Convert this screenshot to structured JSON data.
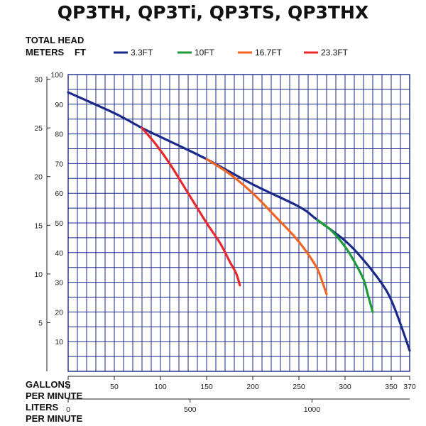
{
  "title": "QP3TH, QP3Ti, QP3TS, QP3THX",
  "axis_labels": {
    "total_head": "TOTAL HEAD",
    "meters": "METERS",
    "ft": "FT",
    "gallons_line1": "GALLONS",
    "gallons_line2": "PER MINUTE",
    "liters_line1": "LITERS",
    "liters_line2": "PER MINUTE"
  },
  "colors": {
    "grid": "#1b2a8a",
    "series_3_3": "#1b2a8a",
    "series_10": "#1e9a3a",
    "series_16_7": "#f26522",
    "series_23_3": "#e8282a"
  },
  "chart_data": {
    "type": "line",
    "title": "QP3TH, QP3Ti, QP3TS, QP3THX",
    "xlabel": "GALLONS PER MINUTE",
    "ylabel": "TOTAL HEAD FT",
    "xlim": [
      0,
      370
    ],
    "ylim": [
      0,
      100
    ],
    "x_ticks": [
      0,
      50,
      100,
      150,
      200,
      250,
      300,
      350,
      370
    ],
    "y_ticks": [
      10,
      20,
      30,
      40,
      50,
      60,
      70,
      80,
      90,
      100
    ],
    "meters_ticks": [
      5,
      10,
      15,
      20,
      25,
      30
    ],
    "liters_ticks": [
      0,
      500,
      1000
    ],
    "grid": true,
    "legend_position": "top",
    "series": [
      {
        "name": "3.3FT",
        "x": [
          0,
          50,
          80,
          100,
          150,
          200,
          250,
          270,
          300,
          320,
          340,
          350,
          360,
          370
        ],
        "y": [
          94,
          87,
          82,
          79,
          71.5,
          63,
          55.5,
          51,
          44,
          37.5,
          29.5,
          24,
          16,
          7
        ]
      },
      {
        "name": "10FT",
        "x": [
          270,
          285,
          300,
          310,
          320,
          325,
          330
        ],
        "y": [
          51,
          47.5,
          42,
          37,
          31,
          25.5,
          20
        ]
      },
      {
        "name": "16.7FT",
        "x": [
          150,
          175,
          200,
          225,
          245,
          260,
          270,
          275,
          280
        ],
        "y": [
          71.5,
          66.5,
          60,
          52,
          45.5,
          39.5,
          34.5,
          30.5,
          26
        ]
      },
      {
        "name": "23.3FT",
        "x": [
          80,
          95,
          110,
          130,
          150,
          165,
          175,
          182,
          186
        ],
        "y": [
          82,
          76.5,
          70,
          60,
          50,
          43,
          37,
          33,
          29
        ]
      }
    ]
  }
}
